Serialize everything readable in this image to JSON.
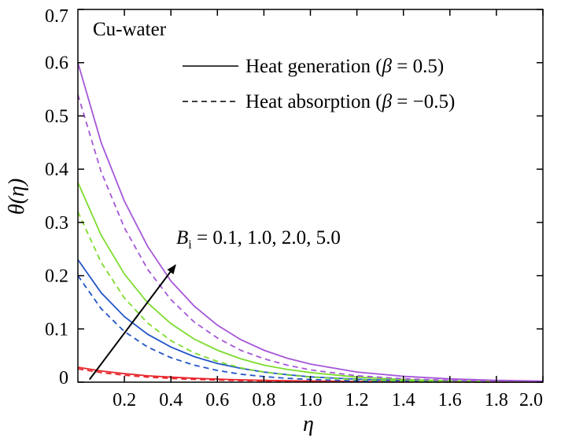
{
  "chart_data": {
    "type": "line",
    "title": "",
    "xlabel": "η",
    "ylabel": "θ(η)",
    "xlim": [
      0,
      2.0
    ],
    "ylim": [
      0,
      0.7
    ],
    "x_ticks": [
      0.2,
      0.4,
      0.6,
      0.8,
      1.0,
      1.2,
      1.4,
      1.6,
      1.8,
      2.0
    ],
    "x_tick_labels": [
      "0.2",
      "0.4",
      "0.6",
      "0.8",
      "1.0",
      "1.2",
      "1.4",
      "1.6",
      "1.8",
      "2.0"
    ],
    "y_ticks": [
      0,
      0.1,
      0.2,
      0.3,
      0.4,
      0.5,
      0.6,
      0.7
    ],
    "y_tick_labels": [
      "0",
      "0.1",
      "0.2",
      "0.3",
      "0.4",
      "0.5",
      "0.6",
      "0.7"
    ],
    "grid": false,
    "legend_position": "top-right",
    "box_label": "Cu-water",
    "legend": [
      {
        "label_start": "Heat generation (",
        "symbol": "β",
        "label_end": " = 0.5)",
        "style": "solid"
      },
      {
        "label_start": "Heat absorption (",
        "symbol": "β",
        "label_end": " = −0.5)",
        "style": "dashed"
      }
    ],
    "annotation": {
      "symbol": "B",
      "subscript": "i",
      "text": " = 0.1, 1.0, 2.0, 5.0",
      "arrow_from": [
        0.05,
        0.005
      ],
      "arrow_to": [
        0.42,
        0.22
      ]
    },
    "x": [
      0,
      0.1,
      0.2,
      0.3,
      0.4,
      0.5,
      0.6,
      0.7,
      0.8,
      0.9,
      1.0,
      1.2,
      1.4,
      1.6,
      1.8,
      2.0
    ],
    "series": [
      {
        "bi": "0.1",
        "case": "Heat generation",
        "color": "#e8262c",
        "dashed": false,
        "values": [
          0.028,
          0.021,
          0.016,
          0.012,
          0.0095,
          0.0073,
          0.0057,
          0.0044,
          0.0034,
          0.0027,
          0.0021,
          0.0013,
          0.0008,
          0.0005,
          0.0003,
          0.0002
        ]
      },
      {
        "bi": "0.1",
        "case": "Heat absorption",
        "color": "#e8262c",
        "dashed": true,
        "values": [
          0.025,
          0.018,
          0.013,
          0.0095,
          0.007,
          0.0052,
          0.0039,
          0.0029,
          0.0022,
          0.0016,
          0.0012,
          0.0007,
          0.0004,
          0.0002,
          0.0001,
          0.0001
        ]
      },
      {
        "bi": "1.0",
        "case": "Heat generation",
        "color": "#2255c8",
        "dashed": false,
        "values": [
          0.23,
          0.168,
          0.123,
          0.09,
          0.066,
          0.048,
          0.035,
          0.026,
          0.019,
          0.014,
          0.01,
          0.0055,
          0.003,
          0.0016,
          0.0009,
          0.0005
        ]
      },
      {
        "bi": "1.0",
        "case": "Heat absorption",
        "color": "#2255c8",
        "dashed": true,
        "values": [
          0.2,
          0.138,
          0.095,
          0.066,
          0.046,
          0.032,
          0.022,
          0.015,
          0.0105,
          0.0073,
          0.005,
          0.0024,
          0.0012,
          0.0006,
          0.0003,
          0.0001
        ]
      },
      {
        "bi": "2.0",
        "case": "Heat generation",
        "color": "#7ddc2e",
        "dashed": false,
        "values": [
          0.375,
          0.276,
          0.203,
          0.149,
          0.11,
          0.081,
          0.06,
          0.044,
          0.032,
          0.024,
          0.018,
          0.0095,
          0.005,
          0.0027,
          0.0015,
          0.0008
        ]
      },
      {
        "bi": "2.0",
        "case": "Heat absorption",
        "color": "#7ddc2e",
        "dashed": true,
        "values": [
          0.32,
          0.225,
          0.158,
          0.111,
          0.078,
          0.055,
          0.039,
          0.027,
          0.019,
          0.0135,
          0.0095,
          0.0047,
          0.0024,
          0.0012,
          0.0006,
          0.0003
        ]
      },
      {
        "bi": "5.0",
        "case": "Heat generation",
        "color": "#a657d8",
        "dashed": false,
        "values": [
          0.6,
          0.45,
          0.34,
          0.255,
          0.19,
          0.143,
          0.107,
          0.08,
          0.06,
          0.045,
          0.034,
          0.019,
          0.011,
          0.0062,
          0.0035,
          0.002
        ]
      },
      {
        "bi": "5.0",
        "case": "Heat absorption",
        "color": "#a657d8",
        "dashed": true,
        "values": [
          0.54,
          0.395,
          0.29,
          0.212,
          0.155,
          0.113,
          0.083,
          0.06,
          0.044,
          0.032,
          0.023,
          0.012,
          0.0065,
          0.0034,
          0.0018,
          0.001
        ]
      }
    ]
  }
}
